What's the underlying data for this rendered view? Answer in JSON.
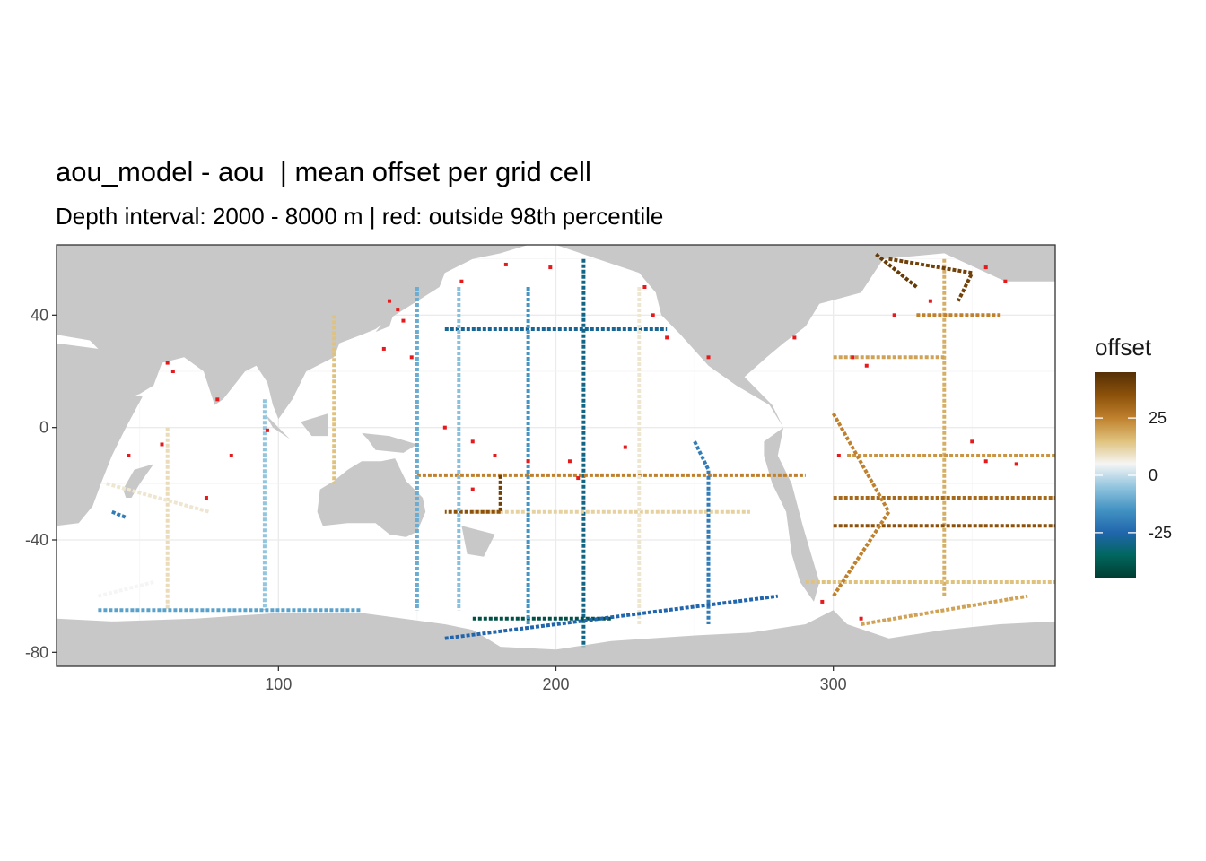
{
  "title": "aou_model - aou  | mean offset per grid cell",
  "subtitle": "Depth interval: 2000 - 8000 m | red: outside 98th percentile",
  "chart_data": {
    "type": "heatmap",
    "x_range": [
      20,
      380
    ],
    "y_range": [
      -85,
      65
    ],
    "x_ticks": [
      {
        "value": 100,
        "label": "100"
      },
      {
        "value": 200,
        "label": "200"
      },
      {
        "value": 300,
        "label": "300"
      }
    ],
    "y_ticks": [
      {
        "value": 40,
        "label": "40"
      },
      {
        "value": 0,
        "label": "0"
      },
      {
        "value": -40,
        "label": "-40"
      },
      {
        "value": -80,
        "label": "-80"
      }
    ],
    "grid": true,
    "legend": {
      "title": "offset",
      "position": "right",
      "range": [
        -45,
        45
      ],
      "ticks": [
        {
          "value": 25,
          "label": "25"
        },
        {
          "value": 0,
          "label": "0"
        },
        {
          "value": -25,
          "label": "-25"
        }
      ],
      "colors": [
        "#003c30",
        "#01665e",
        "#2166ac",
        "#4393c3",
        "#92c5de",
        "#f5f5f5",
        "#dfc27d",
        "#bf812d",
        "#8c510a",
        "#543005"
      ]
    },
    "outlier_color": "#e41a1c",
    "land_color": "#c8c8c8",
    "ocean_color": "#ffffff",
    "land": [
      [
        [
          20,
          65
        ],
        [
          380,
          65
        ],
        [
          380,
          52
        ],
        [
          362,
          52
        ],
        [
          340,
          62
        ],
        [
          318,
          60
        ],
        [
          310,
          48
        ],
        [
          295,
          44
        ],
        [
          290,
          36
        ],
        [
          282,
          30
        ],
        [
          276,
          25
        ],
        [
          268,
          18
        ],
        [
          278,
          8
        ],
        [
          282,
          0
        ],
        [
          280,
          -10
        ],
        [
          285,
          -20
        ],
        [
          289,
          -35
        ],
        [
          292,
          -45
        ],
        [
          295,
          -55
        ],
        [
          293,
          -62
        ],
        [
          288,
          -55
        ],
        [
          285,
          -45
        ],
        [
          283,
          -30
        ],
        [
          278,
          -20
        ],
        [
          275,
          -10
        ],
        [
          275,
          -5
        ],
        [
          282,
          0
        ],
        [
          277,
          8
        ],
        [
          265,
          15
        ],
        [
          255,
          22
        ],
        [
          245,
          33
        ],
        [
          238,
          40
        ],
        [
          236,
          48
        ],
        [
          230,
          55
        ],
        [
          215,
          60
        ],
        [
          200,
          65
        ],
        [
          190,
          65
        ],
        [
          180,
          62
        ],
        [
          170,
          60
        ],
        [
          160,
          55
        ],
        [
          158,
          50
        ],
        [
          150,
          45
        ],
        [
          142,
          40
        ],
        [
          135,
          35
        ],
        [
          130,
          33
        ],
        [
          122,
          30
        ],
        [
          120,
          25
        ],
        [
          110,
          20
        ],
        [
          105,
          10
        ],
        [
          100,
          3
        ],
        [
          98,
          8
        ],
        [
          96,
          16
        ],
        [
          92,
          22
        ],
        [
          88,
          20
        ],
        [
          80,
          10
        ],
        [
          77,
          8
        ],
        [
          73,
          20
        ],
        [
          66,
          25
        ],
        [
          58,
          23
        ],
        [
          55,
          15
        ],
        [
          50,
          12
        ],
        [
          45,
          10
        ],
        [
          40,
          15
        ],
        [
          35,
          28
        ],
        [
          32,
          31
        ],
        [
          20,
          33
        ]
      ],
      [
        [
          20,
          30
        ],
        [
          35,
          28
        ],
        [
          43,
          12
        ],
        [
          51,
          11
        ],
        [
          45,
          0
        ],
        [
          40,
          -10
        ],
        [
          36,
          -20
        ],
        [
          33,
          -28
        ],
        [
          28,
          -34
        ],
        [
          20,
          -35
        ]
      ],
      [
        [
          115,
          -22
        ],
        [
          114,
          -30
        ],
        [
          116,
          -35
        ],
        [
          125,
          -34
        ],
        [
          135,
          -34
        ],
        [
          140,
          -38
        ],
        [
          146,
          -39
        ],
        [
          150,
          -37
        ],
        [
          153,
          -30
        ],
        [
          152,
          -25
        ],
        [
          146,
          -19
        ],
        [
          142,
          -11
        ],
        [
          137,
          -12
        ],
        [
          130,
          -12
        ],
        [
          125,
          -15
        ],
        [
          120,
          -19
        ]
      ],
      [
        [
          20,
          -68
        ],
        [
          40,
          -69
        ],
        [
          70,
          -68
        ],
        [
          100,
          -66
        ],
        [
          130,
          -66
        ],
        [
          160,
          -70
        ],
        [
          170,
          -72
        ],
        [
          180,
          -78
        ],
        [
          200,
          -79
        ],
        [
          220,
          -76
        ],
        [
          250,
          -74
        ],
        [
          270,
          -73
        ],
        [
          290,
          -70
        ],
        [
          300,
          -65
        ],
        [
          305,
          -70
        ],
        [
          320,
          -75
        ],
        [
          340,
          -72
        ],
        [
          360,
          -70
        ],
        [
          380,
          -69
        ],
        [
          380,
          -85
        ],
        [
          20,
          -85
        ]
      ],
      [
        [
          296,
          58
        ],
        [
          315,
          60
        ],
        [
          330,
          68
        ],
        [
          345,
          70
        ],
        [
          340,
          80
        ],
        [
          296,
          80
        ]
      ],
      [
        [
          55,
          -13
        ],
        [
          48,
          -15
        ],
        [
          44,
          -22
        ],
        [
          45,
          -25
        ],
        [
          47,
          -25
        ],
        [
          50,
          -20
        ]
      ],
      [
        [
          130,
          -2
        ],
        [
          140,
          -3
        ],
        [
          150,
          -6
        ],
        [
          145,
          -9
        ],
        [
          135,
          -8
        ],
        [
          132,
          -4
        ]
      ],
      [
        [
          108,
          2
        ],
        [
          118,
          5
        ],
        [
          118,
          -3
        ],
        [
          112,
          -3
        ]
      ],
      [
        [
          95,
          5
        ],
        [
          106,
          -6
        ],
        [
          104,
          -4
        ],
        [
          98,
          0
        ]
      ],
      [
        [
          130,
          32
        ],
        [
          140,
          36
        ],
        [
          142,
          42
        ],
        [
          140,
          40
        ],
        [
          135,
          34
        ]
      ],
      [
        [
          166,
          -35
        ],
        [
          178,
          -38
        ],
        [
          174,
          -46
        ],
        [
          168,
          -45
        ]
      ]
    ],
    "tracks": [
      {
        "points": [
          [
            160,
            35
          ],
          [
            240,
            35
          ]
        ],
        "value": -28
      },
      {
        "points": [
          [
            210,
            60
          ],
          [
            210,
            -78
          ]
        ],
        "value": -30
      },
      {
        "points": [
          [
            170,
            -68
          ],
          [
            220,
            -68
          ]
        ],
        "value": -40
      },
      {
        "points": [
          [
            170,
            -30
          ],
          [
            270,
            -30
          ]
        ],
        "value": 12
      },
      {
        "points": [
          [
            150,
            -17
          ],
          [
            290,
            -17
          ]
        ],
        "value": 25
      },
      {
        "points": [
          [
            180,
            -17
          ],
          [
            180,
            -30
          ]
        ],
        "value": 40
      },
      {
        "points": [
          [
            180,
            -30
          ],
          [
            160,
            -30
          ]
        ],
        "value": 35
      },
      {
        "points": [
          [
            150,
            50
          ],
          [
            150,
            -65
          ]
        ],
        "value": -10
      },
      {
        "points": [
          [
            165,
            50
          ],
          [
            165,
            -65
          ]
        ],
        "value": -6
      },
      {
        "points": [
          [
            190,
            50
          ],
          [
            190,
            -70
          ]
        ],
        "value": -15
      },
      {
        "points": [
          [
            230,
            50
          ],
          [
            230,
            -70
          ]
        ],
        "value": 8
      },
      {
        "points": [
          [
            250,
            -5
          ],
          [
            255,
            -15
          ],
          [
            255,
            -70
          ]
        ],
        "value": -20
      },
      {
        "points": [
          [
            120,
            40
          ],
          [
            120,
            -20
          ]
        ],
        "value": 15
      },
      {
        "points": [
          [
            60,
            0
          ],
          [
            60,
            -65
          ]
        ],
        "value": 10
      },
      {
        "points": [
          [
            95,
            10
          ],
          [
            95,
            -65
          ]
        ],
        "value": -5
      },
      {
        "points": [
          [
            35,
            -65
          ],
          [
            130,
            -65
          ]
        ],
        "value": -12
      },
      {
        "points": [
          [
            340,
            60
          ],
          [
            340,
            -60
          ]
        ],
        "value": 18
      },
      {
        "points": [
          [
            330,
            40
          ],
          [
            360,
            40
          ]
        ],
        "value": 25
      },
      {
        "points": [
          [
            300,
            25
          ],
          [
            340,
            25
          ]
        ],
        "value": 20
      },
      {
        "points": [
          [
            305,
            -10
          ],
          [
            380,
            -10
          ]
        ],
        "value": 22
      },
      {
        "points": [
          [
            300,
            -25
          ],
          [
            380,
            -25
          ]
        ],
        "value": 30
      },
      {
        "points": [
          [
            300,
            -35
          ],
          [
            380,
            -35
          ]
        ],
        "value": 35
      },
      {
        "points": [
          [
            290,
            -55
          ],
          [
            380,
            -55
          ]
        ],
        "value": 15
      },
      {
        "points": [
          [
            310,
            -70
          ],
          [
            370,
            -60
          ]
        ],
        "value": 20
      },
      {
        "points": [
          [
            320,
            60
          ],
          [
            350,
            55
          ],
          [
            345,
            45
          ]
        ],
        "value": 40
      },
      {
        "points": [
          [
            330,
            50
          ],
          [
            315,
            62
          ]
        ],
        "value": 42
      },
      {
        "points": [
          [
            300,
            5
          ],
          [
            320,
            -30
          ],
          [
            300,
            -60
          ]
        ],
        "value": 25
      },
      {
        "points": [
          [
            40,
            -30
          ],
          [
            45,
            -32
          ]
        ],
        "value": -20
      },
      {
        "points": [
          [
            38,
            -20
          ],
          [
            75,
            -30
          ]
        ],
        "value": 8
      },
      {
        "points": [
          [
            35,
            -60
          ],
          [
            55,
            -55
          ]
        ],
        "value": 5
      },
      {
        "points": [
          [
            160,
            -75
          ],
          [
            280,
            -60
          ]
        ],
        "value": -25
      }
    ],
    "outliers": [
      [
        166,
        52
      ],
      [
        182,
        58
      ],
      [
        198,
        57
      ],
      [
        235,
        40
      ],
      [
        240,
        32
      ],
      [
        255,
        25
      ],
      [
        232,
        50
      ],
      [
        60,
        23
      ],
      [
        62,
        20
      ],
      [
        78,
        10
      ],
      [
        140,
        45
      ],
      [
        143,
        42
      ],
      [
        145,
        38
      ],
      [
        138,
        28
      ],
      [
        148,
        25
      ],
      [
        160,
        0
      ],
      [
        170,
        -5
      ],
      [
        178,
        -10
      ],
      [
        190,
        -12
      ],
      [
        205,
        -12
      ],
      [
        208,
        -18
      ],
      [
        170,
        -22
      ],
      [
        225,
        -7
      ],
      [
        350,
        -5
      ],
      [
        355,
        -12
      ],
      [
        366,
        -13
      ],
      [
        302,
        -10
      ],
      [
        307,
        25
      ],
      [
        286,
        32
      ],
      [
        312,
        22
      ],
      [
        322,
        40
      ],
      [
        335,
        45
      ],
      [
        355,
        57
      ],
      [
        362,
        52
      ],
      [
        296,
        -62
      ],
      [
        310,
        -68
      ],
      [
        96,
        -1
      ],
      [
        46,
        -10
      ],
      [
        74,
        -25
      ],
      [
        58,
        -6
      ],
      [
        83,
        -10
      ]
    ]
  }
}
